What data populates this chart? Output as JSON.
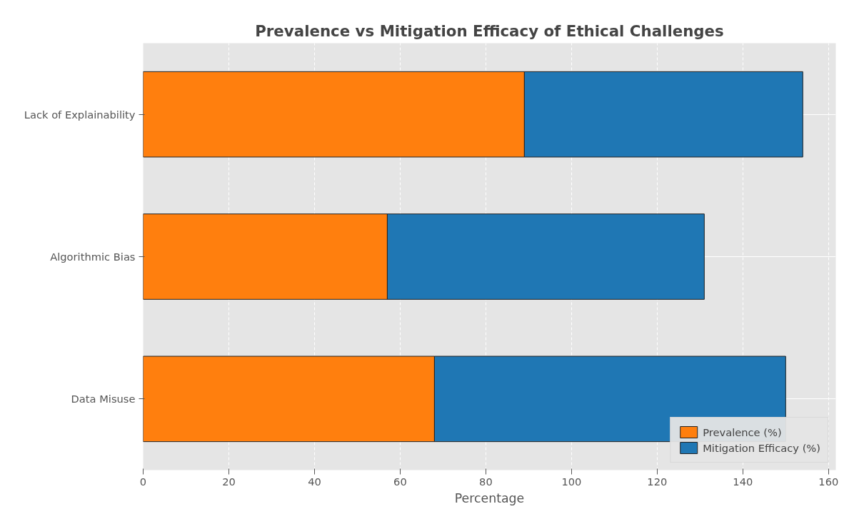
{
  "chart_data": {
    "type": "bar",
    "orientation": "horizontal",
    "stacked": true,
    "title": "Prevalence vs Mitigation Efficacy of Ethical Challenges",
    "xlabel": "Percentage",
    "categories": [
      "Lack of Explainability",
      "Algorithmic Bias",
      "Data Misuse"
    ],
    "series": [
      {
        "name": "Prevalence (%)",
        "color": "#ff7f0e",
        "values": [
          89,
          57,
          68
        ]
      },
      {
        "name": "Mitigation Efficacy (%)",
        "color": "#1f77b4",
        "values": [
          65,
          74,
          82
        ]
      }
    ],
    "xlim": [
      0,
      161.7
    ],
    "xticks": [
      0,
      20,
      40,
      60,
      80,
      100,
      120,
      140,
      160
    ],
    "grid": true,
    "legend": "bottom right"
  }
}
